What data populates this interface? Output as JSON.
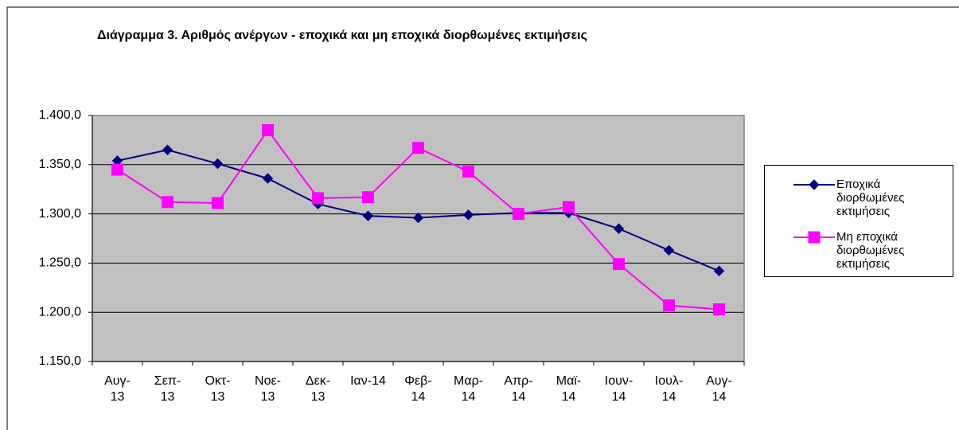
{
  "chart_data": {
    "type": "line",
    "title": "Διάγραμμα 3. Αριθμός ανέργων - εποχικά και μη εποχικά διορθωμένες εκτιμήσεις",
    "categories": [
      "Αυγ-\n13",
      "Σεπ-\n13",
      "Οκτ-\n13",
      "Νοε-\n13",
      "Δεκ-\n13",
      "Ιαν-14",
      "Φεβ-\n14",
      "Μαρ-\n14",
      "Απρ-\n14",
      "Μαϊ-\n14",
      "Ιουν-\n14",
      "Ιουλ-\n14",
      "Αυγ-\n14"
    ],
    "series": [
      {
        "name": "Εποχικά διορθωμένες εκτιμήσεις",
        "color": "#000080",
        "marker": "diamond",
        "values": [
          1354,
          1365,
          1351,
          1336,
          1310,
          1298,
          1296,
          1299,
          1301,
          1301,
          1285,
          1263,
          1242
        ]
      },
      {
        "name": "Μη εποχικά διορθωμένες εκτιμήσεις",
        "color": "#ff00ff",
        "marker": "square",
        "values": [
          1345,
          1312,
          1311,
          1385,
          1316,
          1317,
          1367,
          1343,
          1300,
          1307,
          1249,
          1207,
          1203
        ]
      }
    ],
    "ylim": [
      1150,
      1400
    ],
    "yticks": [
      {
        "value": 1150,
        "label": "1.150,0"
      },
      {
        "value": 1200,
        "label": "1.200,0"
      },
      {
        "value": 1250,
        "label": "1.250,0"
      },
      {
        "value": 1300,
        "label": "1.300,0"
      },
      {
        "value": 1350,
        "label": "1.350,0"
      },
      {
        "value": 1400,
        "label": "1.400,0"
      }
    ],
    "grid": true,
    "plot_background": "#c0c0c0",
    "legend": "right"
  }
}
